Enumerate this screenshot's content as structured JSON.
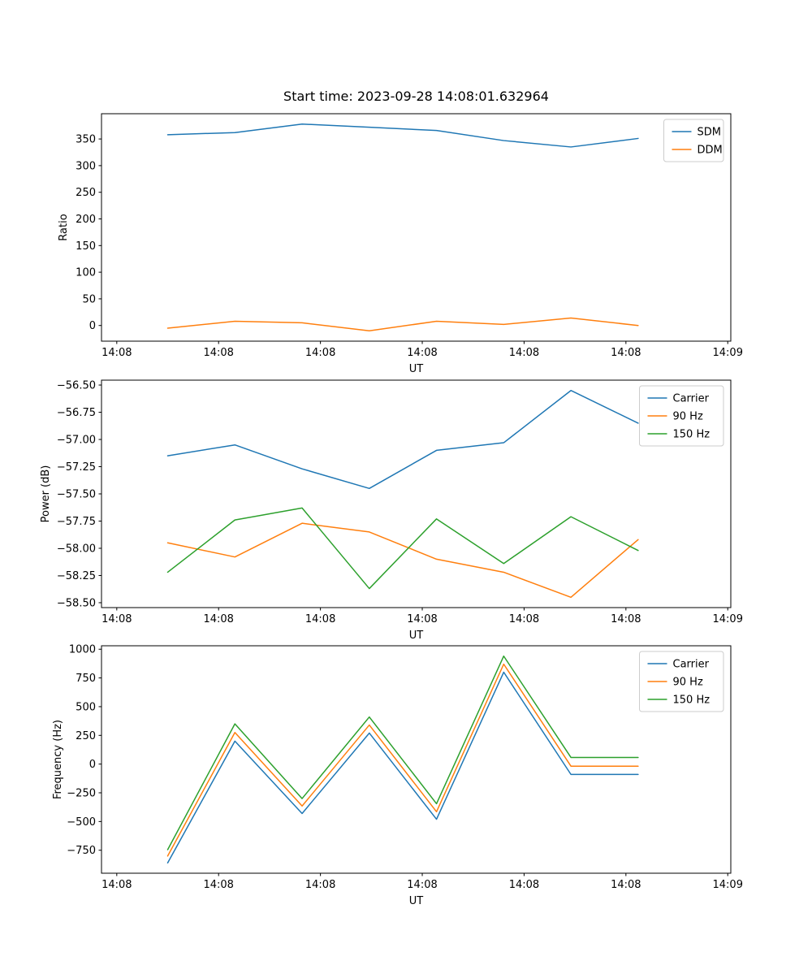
{
  "figure": {
    "background": "#ffffff",
    "title": "Start time: 2023-09-28 14:08:01.632964"
  },
  "colors": {
    "blue": "#1f77b4",
    "orange": "#ff7f0e",
    "green": "#2ca02c",
    "legend_border": "#cccccc",
    "axes": "#000000"
  },
  "chart_data": [
    {
      "id": "ratio",
      "type": "line",
      "title": "Start time: 2023-09-28 14:08:01.632964",
      "xlabel": "UT",
      "ylabel": "Ratio",
      "xlim": [
        -1.5,
        60.3
      ],
      "ylim": [
        -29.4,
        397.4
      ],
      "grid": false,
      "legend_position": "upper right",
      "x_tick_values": [
        0,
        10,
        20,
        30,
        40,
        50,
        60
      ],
      "x_tick_labels": [
        "14:08",
        "14:08",
        "14:08",
        "14:08",
        "14:08",
        "14:08",
        "14:09"
      ],
      "y_tick_values": [
        0,
        50,
        100,
        150,
        200,
        250,
        300,
        350
      ],
      "y_tick_labels": [
        "0",
        "50",
        "100",
        "150",
        "200",
        "250",
        "300",
        "350"
      ],
      "x": [
        5,
        11.6,
        18.2,
        24.8,
        31.4,
        38,
        44.6,
        51.2
      ],
      "series": [
        {
          "name": "SDM",
          "color": "#1f77b4",
          "values": [
            358,
            362,
            378,
            372,
            366,
            347,
            335,
            351
          ]
        },
        {
          "name": "DDM",
          "color": "#ff7f0e",
          "values": [
            -5,
            8,
            5,
            -10,
            8,
            2,
            14,
            0
          ]
        }
      ]
    },
    {
      "id": "power",
      "type": "line",
      "title": "",
      "xlabel": "UT",
      "ylabel": "Power (dB)",
      "xlim": [
        -1.5,
        60.3
      ],
      "ylim": [
        -58.545,
        -56.455
      ],
      "grid": false,
      "legend_position": "upper right",
      "x_tick_values": [
        0,
        10,
        20,
        30,
        40,
        50,
        60
      ],
      "x_tick_labels": [
        "14:08",
        "14:08",
        "14:08",
        "14:08",
        "14:08",
        "14:08",
        "14:09"
      ],
      "y_tick_values": [
        -56.5,
        -56.75,
        -57.0,
        -57.25,
        -57.5,
        -57.75,
        -58.0,
        -58.25,
        -58.5
      ],
      "y_tick_labels": [
        "−56.50",
        "−56.75",
        "−57.00",
        "−57.25",
        "−57.50",
        "−57.75",
        "−58.00",
        "−58.25",
        "−58.50"
      ],
      "x": [
        5,
        11.6,
        18.2,
        24.8,
        31.4,
        38,
        44.6,
        51.2
      ],
      "series": [
        {
          "name": "Carrier",
          "color": "#1f77b4",
          "values": [
            -57.15,
            -57.05,
            -57.27,
            -57.45,
            -57.1,
            -57.03,
            -56.55,
            -56.85
          ]
        },
        {
          "name": "90 Hz",
          "color": "#ff7f0e",
          "values": [
            -57.95,
            -58.08,
            -57.77,
            -57.85,
            -58.1,
            -58.22,
            -58.45,
            -57.92
          ]
        },
        {
          "name": "150 Hz",
          "color": "#2ca02c",
          "values": [
            -58.22,
            -57.74,
            -57.63,
            -58.37,
            -57.73,
            -58.14,
            -57.71,
            -58.02
          ]
        }
      ]
    },
    {
      "id": "frequency",
      "type": "line",
      "title": "",
      "xlabel": "UT",
      "ylabel": "Frequency (Hz)",
      "xlim": [
        -1.5,
        60.3
      ],
      "ylim": [
        -950,
        1030
      ],
      "grid": false,
      "legend_position": "upper right",
      "x_tick_values": [
        0,
        10,
        20,
        30,
        40,
        50,
        60
      ],
      "x_tick_labels": [
        "14:08",
        "14:08",
        "14:08",
        "14:08",
        "14:08",
        "14:08",
        "14:09"
      ],
      "y_tick_values": [
        -750,
        -500,
        -250,
        0,
        250,
        500,
        750,
        1000
      ],
      "y_tick_labels": [
        "−750",
        "−500",
        "−250",
        "0",
        "250",
        "500",
        "750",
        "1000"
      ],
      "x": [
        5,
        11.6,
        18.2,
        24.8,
        31.4,
        38,
        44.6,
        51.2
      ],
      "series": [
        {
          "name": "Carrier",
          "color": "#1f77b4",
          "values": [
            -860,
            200,
            -430,
            270,
            -480,
            800,
            -90,
            -90
          ]
        },
        {
          "name": "90 Hz",
          "color": "#ff7f0e",
          "values": [
            -800,
            275,
            -365,
            340,
            -415,
            870,
            -18,
            -18
          ]
        },
        {
          "name": "150 Hz",
          "color": "#2ca02c",
          "values": [
            -745,
            350,
            -300,
            410,
            -345,
            940,
            58,
            58
          ]
        }
      ]
    }
  ]
}
